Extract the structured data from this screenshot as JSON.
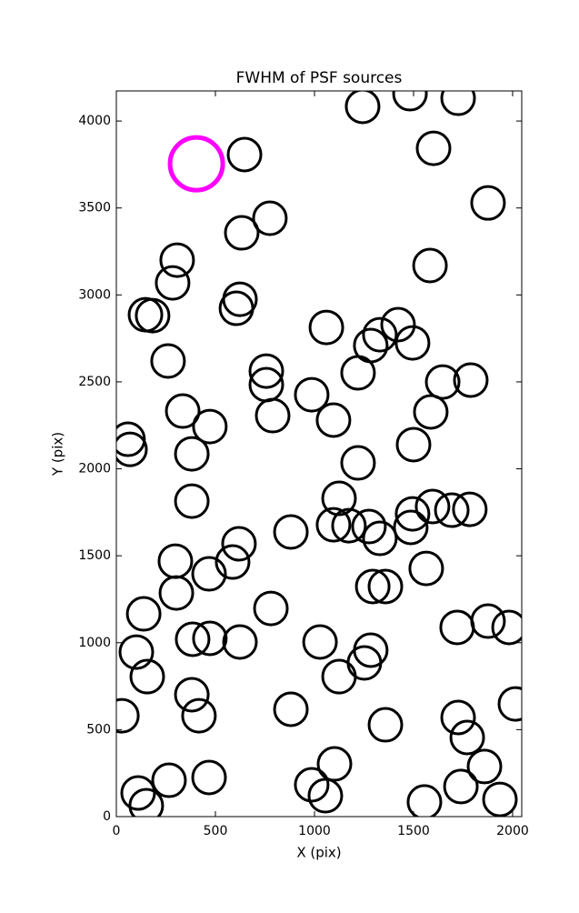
{
  "chart_data": {
    "type": "scatter",
    "title": "FWHM of PSF sources",
    "xlabel": "X (pix)",
    "ylabel": "Y (pix)",
    "xlim": [
      0,
      2046
    ],
    "ylim": [
      0,
      4173
    ],
    "xticks": [
      0,
      500,
      1000,
      1500,
      2000
    ],
    "yticks": [
      0,
      500,
      1000,
      1500,
      2000,
      2500,
      3000,
      3500,
      4000
    ],
    "series": [
      {
        "color": "#000000",
        "x": [
          1243,
          1482,
          1725,
          647,
          1601,
          1876,
          633,
          775,
          307,
          284,
          1583,
          624,
          606,
          147,
          183,
          1060,
          1422,
          1330,
          1284,
          1495,
          261,
          757,
          757,
          1220,
          1647,
          1789,
          986,
          335,
          789,
          1587,
          1096,
          472,
          59,
          69,
          1500,
          381,
          1220,
          1124,
          381,
          1596,
          1495,
          1693,
          1784,
          1096,
          1174,
          1275,
          1486,
          881,
          1330,
          619,
          587,
          298,
          468,
          1294,
          1358,
          1564,
          303,
          780,
          138,
          1720,
          1876,
          1982,
          385,
          472,
          624,
          1028,
          101,
          1284,
          1252,
          156,
          1124,
          381,
          417,
          881,
          28,
          2014,
          1725,
          1771,
          1358,
          1101,
          1858,
          266,
          468,
          986,
          1055,
          110,
          151,
          1555,
          1739,
          1936
        ],
        "values": [
          4084,
          4157,
          4131,
          3807,
          3843,
          3529,
          3357,
          3441,
          3200,
          3069,
          3169,
          2975,
          2923,
          2886,
          2881,
          2813,
          2829,
          2771,
          2709,
          2724,
          2620,
          2562,
          2484,
          2552,
          2499,
          2510,
          2426,
          2332,
          2306,
          2327,
          2280,
          2243,
          2170,
          2112,
          2139,
          2086,
          2034,
          1830,
          1814,
          1783,
          1741,
          1762,
          1767,
          1678,
          1673,
          1668,
          1663,
          1637,
          1600,
          1569,
          1464,
          1469,
          1396,
          1323,
          1323,
          1427,
          1286,
          1197,
          1166,
          1088,
          1124,
          1088,
          1020,
          1025,
          1004,
          1004,
          946,
          957,
          884,
          805,
          805,
          701,
          580,
          617,
          580,
          648,
          570,
          455,
          528,
          303,
          288,
          209,
          225,
          183,
          120,
          136,
          63,
          84,
          173,
          99
        ]
      },
      {
        "color": "#ff00ff",
        "x": [
          404
        ],
        "values": [
          3754
        ]
      }
    ]
  }
}
